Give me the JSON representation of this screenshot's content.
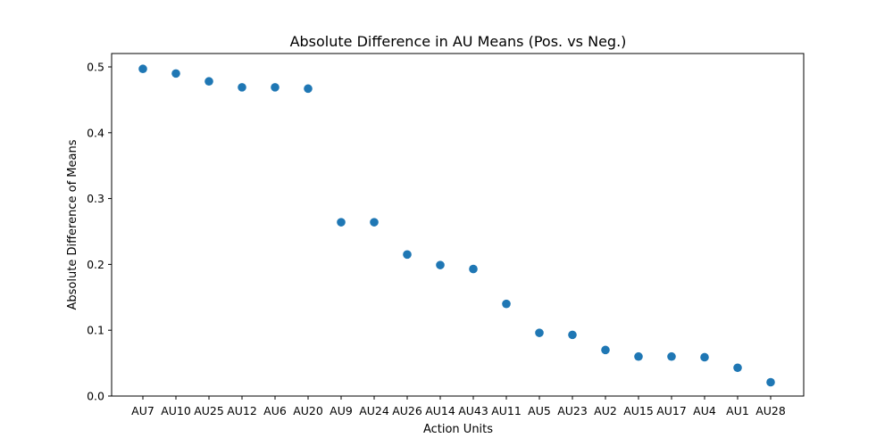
{
  "chart_data": {
    "type": "scatter",
    "title": "Absolute Difference in AU Means (Pos. vs Neg.)",
    "xlabel": "Action Units",
    "ylabel": "Absolute Difference of Means",
    "categories": [
      "AU7",
      "AU10",
      "AU25",
      "AU12",
      "AU6",
      "AU20",
      "AU9",
      "AU24",
      "AU26",
      "AU14",
      "AU43",
      "AU11",
      "AU5",
      "AU23",
      "AU2",
      "AU15",
      "AU17",
      "AU4",
      "AU1",
      "AU28"
    ],
    "values": [
      0.497,
      0.49,
      0.478,
      0.469,
      0.469,
      0.467,
      0.264,
      0.264,
      0.215,
      0.199,
      0.193,
      0.14,
      0.096,
      0.093,
      0.07,
      0.06,
      0.06,
      0.059,
      0.043,
      0.021
    ],
    "ylim": [
      0,
      0.52
    ],
    "yticks": [
      "0.0",
      "0.1",
      "0.2",
      "0.3",
      "0.4",
      "0.5"
    ],
    "marker_color": "#1f77b4",
    "grid": false,
    "legend": "none"
  }
}
